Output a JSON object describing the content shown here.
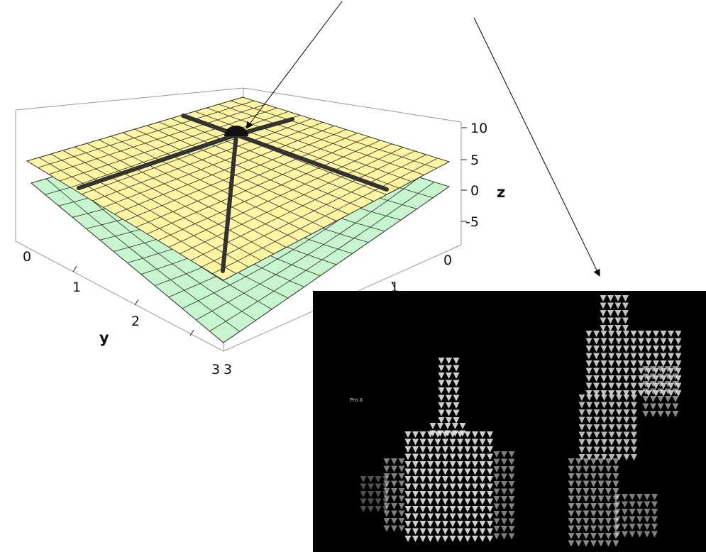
{
  "plot3d": {
    "z_axis": {
      "label": "z",
      "ticks": [
        "10",
        "5",
        "0",
        "-5"
      ]
    },
    "y_axis": {
      "label": "y",
      "ticks": [
        "0",
        "1",
        "2",
        "3"
      ]
    },
    "x_axis": {
      "ticks": [
        "0",
        "1",
        "3"
      ]
    },
    "colors": {
      "upper_surface": "#fff6a4",
      "lower_surface": "#c6f5ce",
      "mesh": "#2a2a2a",
      "crosshair": "#333333",
      "frame": "#9a9a9a"
    }
  },
  "arrows": {
    "color": "#000000",
    "targets": [
      "peak-marker",
      "camera-panel"
    ]
  },
  "camera_panel": {
    "label": "Pro X",
    "background": "#000000",
    "glyph_color": "#e6e6e6"
  }
}
